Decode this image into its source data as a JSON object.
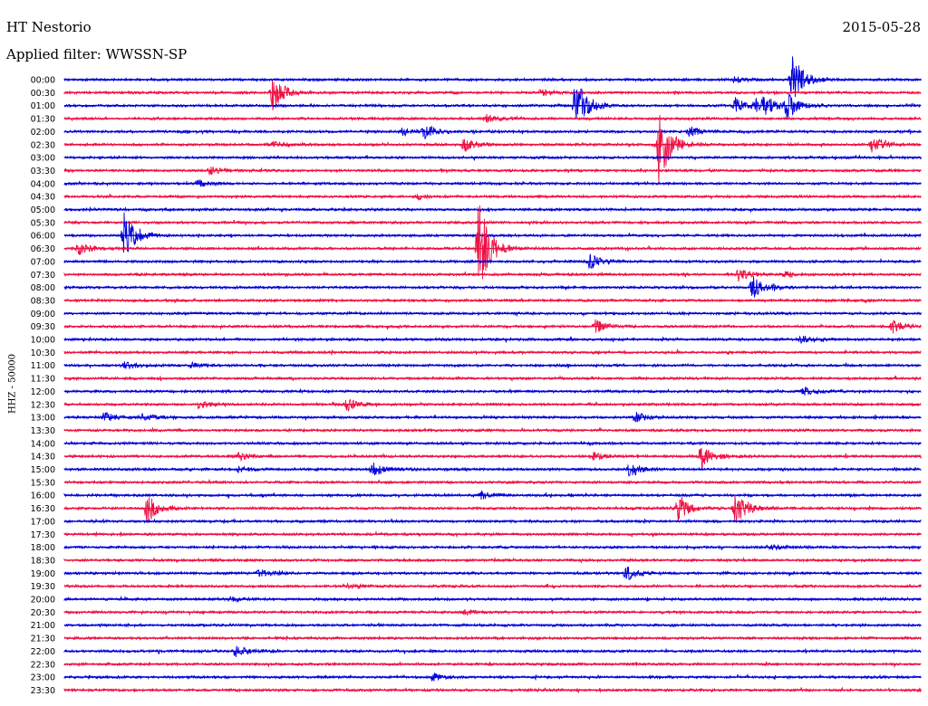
{
  "header": {
    "station": "HT Nestorio",
    "date": "2015-05-28",
    "filter": "Applied filter: WWSSN-SP",
    "channel_label": "HHZ - 50000"
  },
  "colors": {
    "trace_a": "#0000dd",
    "trace_b": "#ee1144",
    "background": "#ffffff",
    "text": "#000000"
  },
  "chart_data": {
    "type": "line",
    "title": "HT Nestorio",
    "subtitle": "Applied filter: WWSSN-SP",
    "ylabel": "HHZ - 50000",
    "grid": false,
    "line_labels": [
      "00:00",
      "00:30",
      "01:00",
      "01:30",
      "02:00",
      "02:30",
      "03:00",
      "03:30",
      "04:00",
      "04:30",
      "05:00",
      "05:30",
      "06:00",
      "06:30",
      "07:00",
      "07:30",
      "08:00",
      "08:30",
      "09:00",
      "09:30",
      "10:00",
      "10:30",
      "11:00",
      "11:30",
      "12:00",
      "12:30",
      "13:00",
      "13:30",
      "14:00",
      "14:30",
      "15:00",
      "15:30",
      "16:00",
      "16:30",
      "17:00",
      "17:30",
      "18:00",
      "18:30",
      "19:00",
      "19:30",
      "20:00",
      "20:30",
      "21:00",
      "21:30",
      "22:00",
      "22:30",
      "23:00",
      "23:30"
    ],
    "line_minutes": 30,
    "alternating_colors": [
      "#0000dd",
      "#ee1144"
    ],
    "events": [
      {
        "line": "00:00",
        "minute": 23.5,
        "amplitude": 0.2
      },
      {
        "line": "00:00",
        "minute": 25.5,
        "amplitude": 2.0
      },
      {
        "line": "00:30",
        "minute": 7.3,
        "amplitude": 1.5
      },
      {
        "line": "00:30",
        "minute": 16.7,
        "amplitude": 0.3
      },
      {
        "line": "01:00",
        "minute": 17.9,
        "amplitude": 2.5
      },
      {
        "line": "01:00",
        "minute": 23.5,
        "amplitude": 0.6
      },
      {
        "line": "01:00",
        "minute": 24.2,
        "amplitude": 0.5
      },
      {
        "line": "01:00",
        "minute": 24.5,
        "amplitude": 0.7
      },
      {
        "line": "01:00",
        "minute": 25.3,
        "amplitude": 1.0
      },
      {
        "line": "01:30",
        "minute": 14.8,
        "amplitude": 0.3
      },
      {
        "line": "02:00",
        "minute": 11.8,
        "amplitude": 0.3
      },
      {
        "line": "02:00",
        "minute": 12.6,
        "amplitude": 0.6
      },
      {
        "line": "02:00",
        "minute": 21.9,
        "amplitude": 0.4
      },
      {
        "line": "02:30",
        "minute": 20.8,
        "amplitude": 3.5
      },
      {
        "line": "02:30",
        "minute": 14.0,
        "amplitude": 0.5
      },
      {
        "line": "02:30",
        "minute": 28.3,
        "amplitude": 0.7
      },
      {
        "line": "02:30",
        "minute": 7.3,
        "amplitude": 0.2
      },
      {
        "line": "03:30",
        "minute": 5.1,
        "amplitude": 0.3
      },
      {
        "line": "04:00",
        "minute": 4.7,
        "amplitude": 0.3
      },
      {
        "line": "04:30",
        "minute": 12.3,
        "amplitude": 0.2
      },
      {
        "line": "06:00",
        "minute": 2.1,
        "amplitude": 2.0
      },
      {
        "line": "06:30",
        "minute": 14.5,
        "amplitude": 4.0
      },
      {
        "line": "06:30",
        "minute": 0.5,
        "amplitude": 0.5
      },
      {
        "line": "07:00",
        "minute": 18.4,
        "amplitude": 0.6
      },
      {
        "line": "07:30",
        "minute": 23.6,
        "amplitude": 0.5
      },
      {
        "line": "07:30",
        "minute": 25.2,
        "amplitude": 0.2
      },
      {
        "line": "08:00",
        "minute": 24.1,
        "amplitude": 0.9
      },
      {
        "line": "09:30",
        "minute": 18.6,
        "amplitude": 0.5
      },
      {
        "line": "09:30",
        "minute": 29.0,
        "amplitude": 0.5
      },
      {
        "line": "10:00",
        "minute": 25.8,
        "amplitude": 0.3
      },
      {
        "line": "11:00",
        "minute": 2.1,
        "amplitude": 0.3
      },
      {
        "line": "11:00",
        "minute": 4.4,
        "amplitude": 0.2
      },
      {
        "line": "12:00",
        "minute": 25.9,
        "amplitude": 0.3
      },
      {
        "line": "12:30",
        "minute": 4.7,
        "amplitude": 0.3
      },
      {
        "line": "12:30",
        "minute": 9.9,
        "amplitude": 0.5
      },
      {
        "line": "13:00",
        "minute": 1.4,
        "amplitude": 0.4
      },
      {
        "line": "13:00",
        "minute": 2.7,
        "amplitude": 0.3
      },
      {
        "line": "13:00",
        "minute": 20.0,
        "amplitude": 0.4
      },
      {
        "line": "14:30",
        "minute": 22.3,
        "amplitude": 1.0
      },
      {
        "line": "14:30",
        "minute": 18.5,
        "amplitude": 0.3
      },
      {
        "line": "14:30",
        "minute": 6.1,
        "amplitude": 0.3
      },
      {
        "line": "15:00",
        "minute": 10.8,
        "amplitude": 0.6
      },
      {
        "line": "15:00",
        "minute": 19.8,
        "amplitude": 0.6
      },
      {
        "line": "15:00",
        "minute": 6.1,
        "amplitude": 0.2
      },
      {
        "line": "16:00",
        "minute": 14.6,
        "amplitude": 0.3
      },
      {
        "line": "16:30",
        "minute": 2.9,
        "amplitude": 1.2
      },
      {
        "line": "16:30",
        "minute": 21.5,
        "amplitude": 1.2
      },
      {
        "line": "16:30",
        "minute": 23.5,
        "amplitude": 1.4
      },
      {
        "line": "18:00",
        "minute": 24.8,
        "amplitude": 0.2
      },
      {
        "line": "19:00",
        "minute": 6.8,
        "amplitude": 0.3
      },
      {
        "line": "19:00",
        "minute": 19.7,
        "amplitude": 0.6
      },
      {
        "line": "19:30",
        "minute": 10.0,
        "amplitude": 0.2
      },
      {
        "line": "20:00",
        "minute": 5.8,
        "amplitude": 0.2
      },
      {
        "line": "20:30",
        "minute": 14.0,
        "amplitude": 0.2
      },
      {
        "line": "22:00",
        "minute": 6.0,
        "amplitude": 0.5
      },
      {
        "line": "23:00",
        "minute": 12.9,
        "amplitude": 0.3
      }
    ]
  }
}
